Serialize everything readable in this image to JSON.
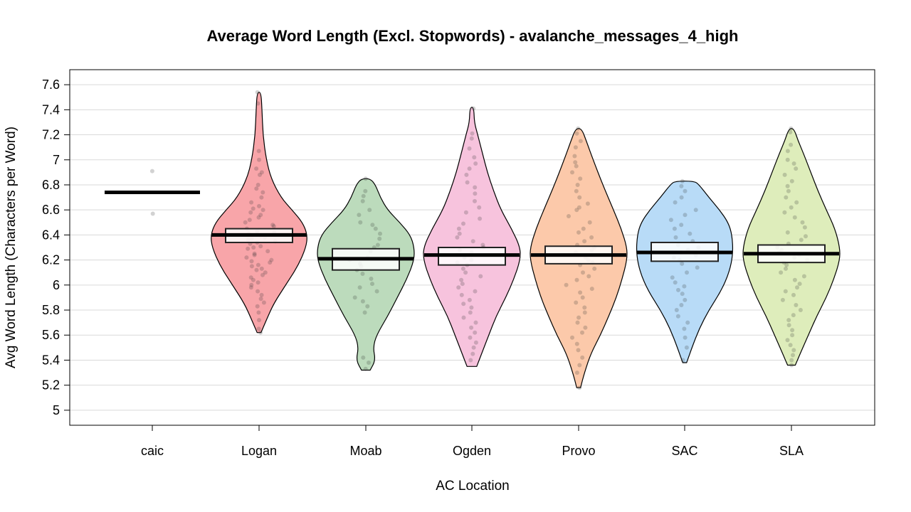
{
  "chart_data": {
    "type": "violin",
    "title": "Average Word Length (Excl. Stopwords) - avalanche_messages_4_high",
    "xlabel": "AC Location",
    "ylabel": "Avg Word Length (Characters per Word)",
    "ylim": [
      4.88,
      7.72
    ],
    "yticks": [
      5,
      5.2,
      5.4,
      5.6,
      5.8,
      6,
      6.2,
      6.4,
      6.6,
      6.8,
      7,
      7.2,
      7.4,
      7.6
    ],
    "ytick_labels": [
      "5",
      "5.2",
      "5.4",
      "5.6",
      "5.8",
      "6",
      "6.2",
      "6.4",
      "6.6",
      "6.8",
      "7",
      "7.2",
      "7.4",
      "7.6"
    ],
    "grid": true,
    "legend": "none",
    "categories": [
      "caic",
      "Logan",
      "Moab",
      "Ogden",
      "Provo",
      "SAC",
      "SLA"
    ],
    "groups": [
      {
        "name": "caic",
        "color": "#ffffff",
        "mean": 6.74,
        "box": null,
        "points": [
          6.91,
          6.57
        ],
        "violin": null
      },
      {
        "name": "Logan",
        "color": "#f8a5a9",
        "mean": 6.4,
        "box": [
          6.34,
          6.45
        ],
        "points": [
          7.54,
          7.45,
          7.07,
          7.0,
          6.93,
          6.9,
          6.88,
          6.8,
          6.77,
          6.74,
          6.7,
          6.66,
          6.63,
          6.61,
          6.6,
          6.58,
          6.56,
          6.54,
          6.52,
          6.5,
          6.48,
          6.47,
          6.45,
          6.43,
          6.42,
          6.41,
          6.4,
          6.39,
          6.38,
          6.37,
          6.36,
          6.35,
          6.34,
          6.33,
          6.31,
          6.3,
          6.29,
          6.27,
          6.25,
          6.24,
          6.22,
          6.2,
          6.19,
          6.18,
          6.16,
          6.15,
          6.13,
          6.12,
          6.1,
          6.08,
          6.06,
          6.04,
          6.02,
          6.0,
          5.98,
          5.95,
          5.92,
          5.89,
          5.86,
          5.83,
          5.78,
          5.72,
          5.65,
          5.62
        ],
        "violin": [
          [
            5.62,
            0.04
          ],
          [
            5.72,
            0.15
          ],
          [
            5.85,
            0.3
          ],
          [
            6.0,
            0.55
          ],
          [
            6.15,
            0.8
          ],
          [
            6.3,
            0.97
          ],
          [
            6.4,
            1.0
          ],
          [
            6.5,
            0.9
          ],
          [
            6.6,
            0.68
          ],
          [
            6.7,
            0.45
          ],
          [
            6.85,
            0.25
          ],
          [
            7.0,
            0.15
          ],
          [
            7.2,
            0.08
          ],
          [
            7.4,
            0.06
          ],
          [
            7.54,
            0.04
          ]
        ]
      },
      {
        "name": "Moab",
        "color": "#bcdbbc",
        "mean": 6.21,
        "box": [
          6.12,
          6.29
        ],
        "points": [
          6.85,
          6.75,
          6.71,
          6.67,
          6.6,
          6.56,
          6.5,
          6.48,
          6.45,
          6.41,
          6.37,
          6.32,
          6.3,
          6.27,
          6.22,
          6.2,
          6.17,
          6.15,
          6.12,
          6.09,
          6.05,
          6.01,
          5.98,
          5.95,
          5.9,
          5.87,
          5.83,
          5.78,
          5.42,
          5.38,
          5.33
        ],
        "violin": [
          [
            5.32,
            0.09
          ],
          [
            5.4,
            0.2
          ],
          [
            5.5,
            0.15
          ],
          [
            5.6,
            0.22
          ],
          [
            5.75,
            0.45
          ],
          [
            5.9,
            0.65
          ],
          [
            6.05,
            0.85
          ],
          [
            6.2,
            1.0
          ],
          [
            6.3,
            1.0
          ],
          [
            6.4,
            0.92
          ],
          [
            6.5,
            0.7
          ],
          [
            6.6,
            0.45
          ],
          [
            6.7,
            0.3
          ],
          [
            6.8,
            0.2
          ],
          [
            6.85,
            0.09
          ]
        ]
      },
      {
        "name": "Ogden",
        "color": "#f7c3dd",
        "mean": 6.24,
        "box": [
          6.16,
          6.3
        ],
        "points": [
          7.41,
          7.21,
          7.17,
          7.09,
          7.02,
          6.97,
          6.93,
          6.88,
          6.82,
          6.78,
          6.73,
          6.67,
          6.62,
          6.58,
          6.53,
          6.49,
          6.45,
          6.41,
          6.38,
          6.35,
          6.32,
          6.3,
          6.28,
          6.26,
          6.24,
          6.22,
          6.2,
          6.18,
          6.16,
          6.13,
          6.1,
          6.07,
          6.04,
          6.01,
          5.98,
          5.95,
          5.92,
          5.88,
          5.85,
          5.82,
          5.78,
          5.74,
          5.7,
          5.66,
          5.62,
          5.58,
          5.54,
          5.5,
          5.45,
          5.4
        ],
        "violin": [
          [
            5.35,
            0.1
          ],
          [
            5.45,
            0.2
          ],
          [
            5.6,
            0.35
          ],
          [
            5.75,
            0.5
          ],
          [
            5.9,
            0.7
          ],
          [
            6.05,
            0.87
          ],
          [
            6.2,
            1.0
          ],
          [
            6.3,
            1.0
          ],
          [
            6.45,
            0.82
          ],
          [
            6.6,
            0.6
          ],
          [
            6.75,
            0.45
          ],
          [
            6.9,
            0.32
          ],
          [
            7.05,
            0.22
          ],
          [
            7.2,
            0.12
          ],
          [
            7.3,
            0.05
          ],
          [
            7.42,
            0.04
          ]
        ]
      },
      {
        "name": "Provo",
        "color": "#fcc9aa",
        "mean": 6.24,
        "box": [
          6.17,
          6.31
        ],
        "points": [
          7.25,
          7.21,
          7.15,
          7.1,
          7.03,
          6.98,
          6.95,
          6.9,
          6.85,
          6.8,
          6.75,
          6.7,
          6.65,
          6.62,
          6.6,
          6.55,
          6.5,
          6.45,
          6.42,
          6.38,
          6.35,
          6.32,
          6.3,
          6.28,
          6.26,
          6.24,
          6.22,
          6.2,
          6.18,
          6.16,
          6.13,
          6.1,
          6.07,
          6.04,
          6.0,
          5.97,
          5.94,
          5.9,
          5.86,
          5.82,
          5.78,
          5.74,
          5.7,
          5.66,
          5.62,
          5.58,
          5.53,
          5.48,
          5.42,
          5.36,
          5.3,
          5.18
        ],
        "violin": [
          [
            5.18,
            0.04
          ],
          [
            5.3,
            0.12
          ],
          [
            5.45,
            0.25
          ],
          [
            5.6,
            0.45
          ],
          [
            5.75,
            0.62
          ],
          [
            5.9,
            0.78
          ],
          [
            6.05,
            0.9
          ],
          [
            6.2,
            1.0
          ],
          [
            6.3,
            1.0
          ],
          [
            6.45,
            0.88
          ],
          [
            6.6,
            0.72
          ],
          [
            6.8,
            0.5
          ],
          [
            7.0,
            0.3
          ],
          [
            7.15,
            0.16
          ],
          [
            7.25,
            0.06
          ]
        ]
      },
      {
        "name": "SAC",
        "color": "#b8dbf7",
        "mean": 6.26,
        "box": [
          6.19,
          6.34
        ],
        "points": [
          6.83,
          6.79,
          6.75,
          6.7,
          6.66,
          6.6,
          6.56,
          6.52,
          6.48,
          6.45,
          6.41,
          6.38,
          6.35,
          6.32,
          6.3,
          6.28,
          6.26,
          6.24,
          6.22,
          6.2,
          6.17,
          6.14,
          6.1,
          6.06,
          6.02,
          5.99,
          5.96,
          5.93,
          5.88,
          5.84,
          5.8,
          5.75,
          5.7,
          5.65,
          5.58,
          5.5,
          5.4
        ],
        "violin": [
          [
            5.38,
            0.04
          ],
          [
            5.5,
            0.15
          ],
          [
            5.65,
            0.3
          ],
          [
            5.8,
            0.5
          ],
          [
            5.95,
            0.75
          ],
          [
            6.1,
            0.92
          ],
          [
            6.25,
            1.0
          ],
          [
            6.4,
            0.98
          ],
          [
            6.5,
            0.9
          ],
          [
            6.6,
            0.72
          ],
          [
            6.7,
            0.5
          ],
          [
            6.8,
            0.3
          ],
          [
            6.83,
            0.2
          ]
        ]
      },
      {
        "name": "SLA",
        "color": "#deedbb",
        "mean": 6.25,
        "box": [
          6.18,
          6.32
        ],
        "points": [
          7.25,
          7.22,
          7.12,
          7.07,
          7.0,
          6.97,
          6.93,
          6.88,
          6.83,
          6.79,
          6.75,
          6.7,
          6.66,
          6.62,
          6.58,
          6.54,
          6.5,
          6.46,
          6.42,
          6.39,
          6.36,
          6.33,
          6.3,
          6.28,
          6.26,
          6.24,
          6.22,
          6.2,
          6.18,
          6.16,
          6.13,
          6.1,
          6.07,
          6.04,
          6.01,
          5.98,
          5.95,
          5.92,
          5.88,
          5.84,
          5.8,
          5.76,
          5.72,
          5.68,
          5.64,
          5.6,
          5.56,
          5.52,
          5.48,
          5.44,
          5.4,
          5.36
        ],
        "violin": [
          [
            5.36,
            0.08
          ],
          [
            5.45,
            0.18
          ],
          [
            5.6,
            0.35
          ],
          [
            5.75,
            0.52
          ],
          [
            5.9,
            0.72
          ],
          [
            6.05,
            0.88
          ],
          [
            6.2,
            1.0
          ],
          [
            6.3,
            1.0
          ],
          [
            6.45,
            0.9
          ],
          [
            6.6,
            0.72
          ],
          [
            6.75,
            0.55
          ],
          [
            6.9,
            0.4
          ],
          [
            7.05,
            0.25
          ],
          [
            7.15,
            0.14
          ],
          [
            7.25,
            0.05
          ]
        ]
      }
    ]
  }
}
